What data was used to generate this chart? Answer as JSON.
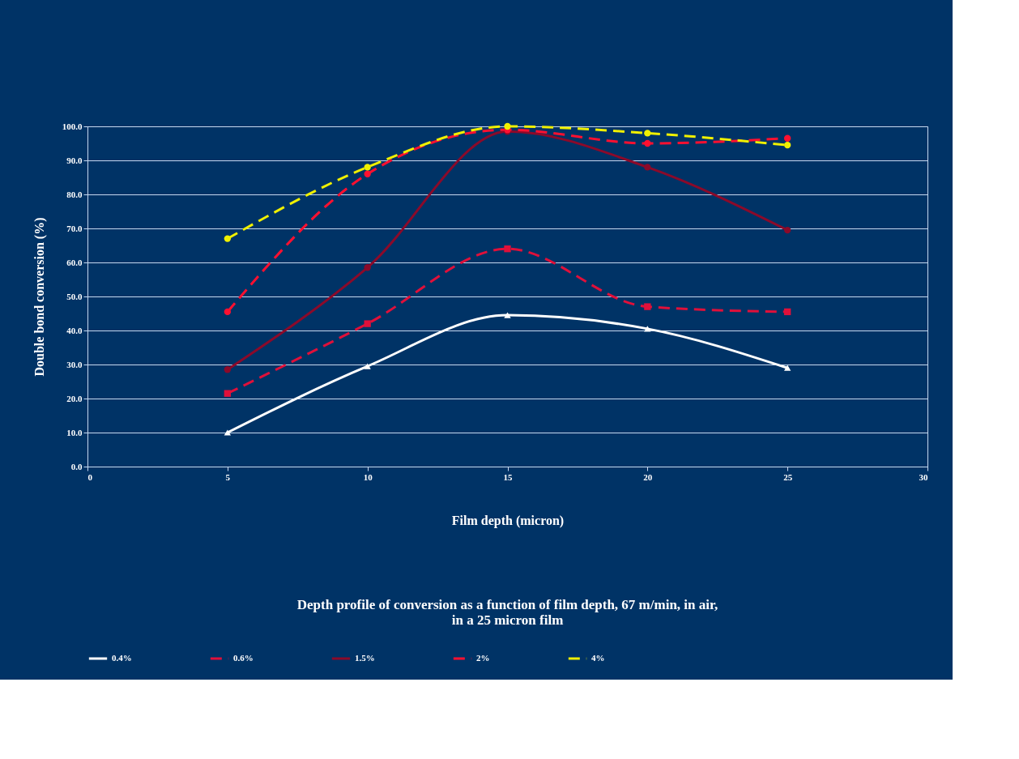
{
  "chart_data": {
    "type": "line",
    "title": [
      "Depth profile of conversion as a function of film depth, 67 m/min, in air,",
      "in a 25 micron film"
    ],
    "xlabel": "Film depth (micron)",
    "ylabel": "Double bond conversion (%)",
    "x": [
      5,
      10,
      15,
      20,
      25
    ],
    "series": [
      {
        "name": "0.4%",
        "color": "#ffffff",
        "line_style": "solid",
        "marker": "triangle",
        "values": [
          10,
          29.5,
          44.5,
          40.5,
          29
        ]
      },
      {
        "name": "0.6%",
        "color": "#e0103a",
        "line_style": "dashed",
        "marker": "square",
        "values": [
          21.5,
          42,
          64,
          47,
          45.5
        ]
      },
      {
        "name": "1.5%",
        "color": "#8b0a2a",
        "line_style": "solid",
        "marker": "circle",
        "values": [
          28.5,
          58.5,
          98.5,
          88,
          69.5
        ]
      },
      {
        "name": "2%",
        "color": "#ff1030",
        "line_style": "dashed",
        "marker": "circle",
        "values": [
          45.5,
          86,
          99,
          95,
          96.5
        ]
      },
      {
        "name": "4%",
        "color": "#f0f000",
        "line_style": "dashed",
        "marker": "circle",
        "values": [
          67,
          88,
          100,
          98,
          94.5
        ]
      }
    ],
    "xlim": [
      0,
      30
    ],
    "xticks": [
      0,
      5,
      10,
      15,
      20,
      25,
      30
    ],
    "ylim": [
      0,
      100
    ],
    "yticks": [
      {
        "value": 0,
        "label": "0.0"
      },
      {
        "value": 10,
        "label": "10.0"
      },
      {
        "value": 20,
        "label": "20.0"
      },
      {
        "value": 30,
        "label": "30.0"
      },
      {
        "value": 40,
        "label": "40.0"
      },
      {
        "value": 50,
        "label": "50.0"
      },
      {
        "value": 60,
        "label": "60.0"
      },
      {
        "value": 70,
        "label": "70.0"
      },
      {
        "value": 80,
        "label": "80.0"
      },
      {
        "value": 90,
        "label": "90.0"
      },
      {
        "value": 100,
        "label": "100.0"
      }
    ],
    "grid": "y",
    "legend": "bottom"
  }
}
